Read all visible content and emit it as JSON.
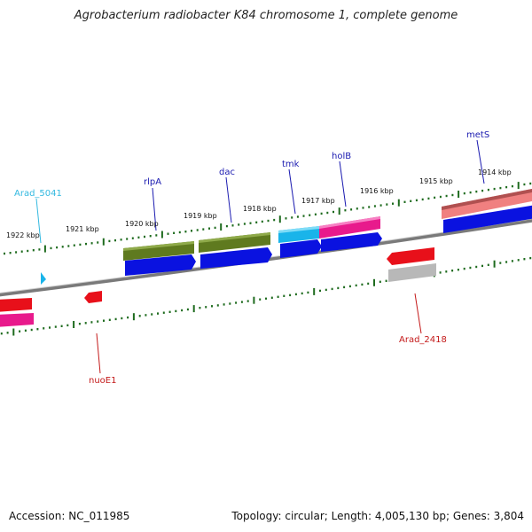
{
  "title": "Agrobacterium radiobacter K84 chromosome 1, complete genome",
  "footer": {
    "accession": "Accession: NC_011985",
    "summary": "Topology: circular; Length: 4,005,130 bp; Genes: 3,804"
  },
  "colors": {
    "backbone": "#7a7a7a",
    "tick": "#1e6b1e",
    "red": "#e8101a",
    "blue": "#0a12e0",
    "olive": "#5f7a1f",
    "cyan": "#19b4ea",
    "magenta": "#e81a8c",
    "salmon": "#f08080",
    "gray": "#b8b8b8",
    "label_blue": "#1a1ab0",
    "label_cyan": "#33b9e0",
    "label_red": "#c41a1a"
  },
  "kbp_labels": [
    "1922 kbp",
    "1921 kbp",
    "1920 kbp",
    "1919 kbp",
    "1918 kbp",
    "1917 kbp",
    "1916 kbp",
    "1915 kbp",
    "1914 kbp"
  ],
  "gene_labels": [
    {
      "name": "Arad_5041",
      "color": "label_cyan"
    },
    {
      "name": "rlpA",
      "color": "label_blue"
    },
    {
      "name": "dac",
      "color": "label_blue"
    },
    {
      "name": "tmk",
      "color": "label_blue"
    },
    {
      "name": "holB",
      "color": "label_blue"
    },
    {
      "name": "metS",
      "color": "label_blue"
    },
    {
      "name": "nuoE1",
      "color": "label_red"
    },
    {
      "name": "Arad_2418",
      "color": "label_red"
    }
  ]
}
